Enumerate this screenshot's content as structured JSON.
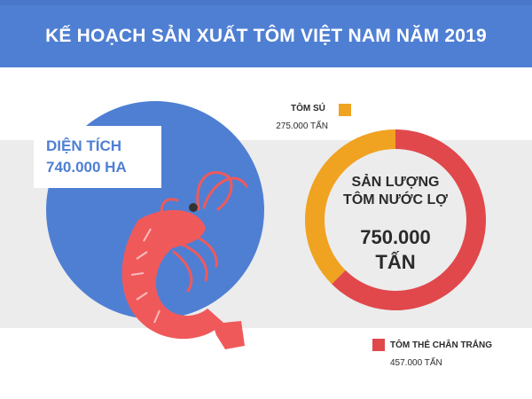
{
  "title": "KẾ HOẠCH SẢN XUẤT TÔM VIỆT NAM NĂM 2019",
  "area": {
    "line1": "DIỆN TÍCH",
    "line2": "740.000 HA"
  },
  "donut_center": {
    "line1": "SẢN LƯỢNG",
    "line2": "TÔM NƯỚC LỢ",
    "value1": "750.000",
    "value2": "TẤN"
  },
  "legend": [
    {
      "name": "TÔM SÚ",
      "value_label": "275.000 TẤN",
      "color": "#f0a221"
    },
    {
      "name": "TÔM THẺ CHÂN TRẮNG",
      "value_label": "457.000 TẤN",
      "color": "#e0484c"
    }
  ],
  "colors": {
    "header": "#4f7fd3",
    "circle": "#4f7fd3",
    "band": "#ececec",
    "shrimp": "#f0595a"
  },
  "chart_data": {
    "type": "pie",
    "style": "donut",
    "title": "SẢN LƯỢNG TÔM NƯỚC LỢ 750.000 TẤN",
    "unit": "TẤN",
    "categories": [
      "TÔM SÚ",
      "TÔM THẺ CHÂN TRẮNG"
    ],
    "values": [
      275000,
      457000
    ],
    "colors": [
      "#f0a221",
      "#e0484c"
    ],
    "legend": "beside"
  }
}
